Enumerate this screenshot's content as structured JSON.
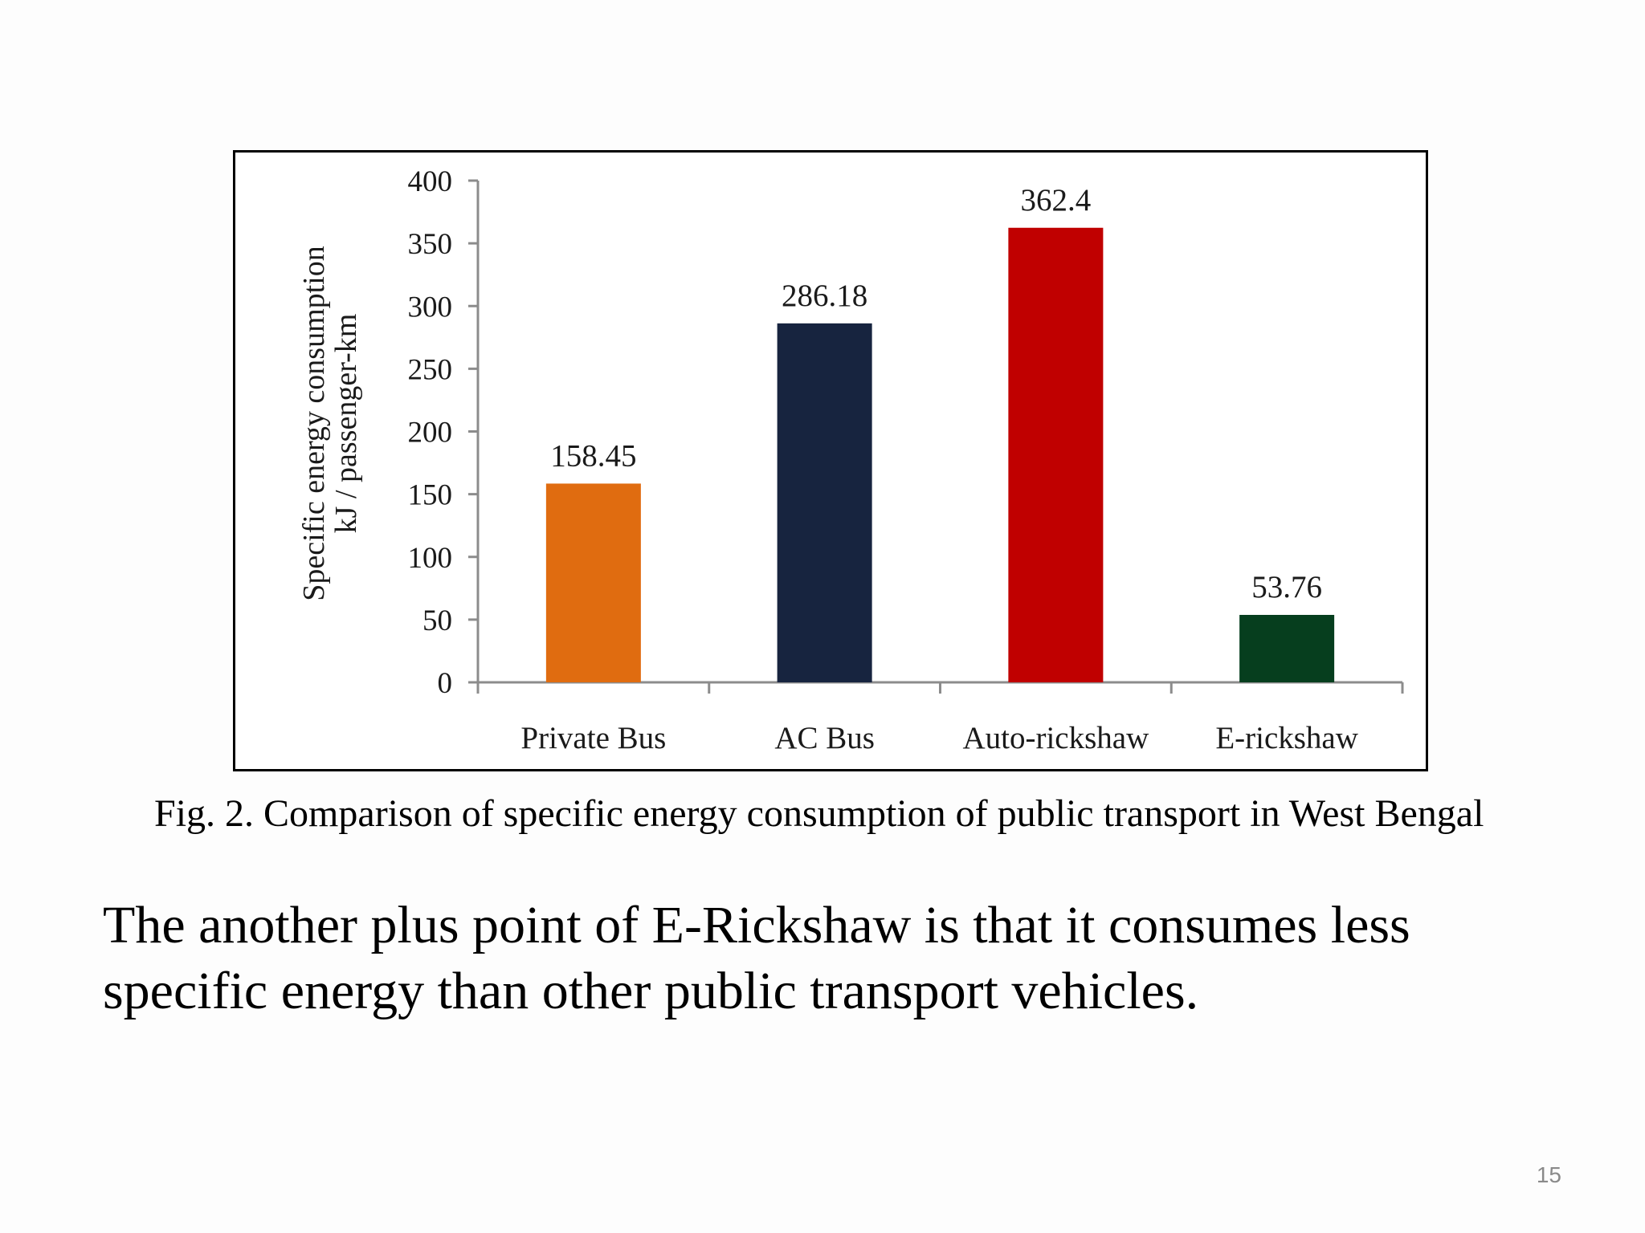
{
  "chart_data": {
    "type": "bar",
    "categories": [
      "Private Bus",
      "AC Bus",
      "Auto-rickshaw",
      "E-rickshaw"
    ],
    "values": [
      158.45,
      286.18,
      362.4,
      53.76
    ],
    "data_labels": [
      "158.45",
      "286.18",
      "362.4",
      "53.76"
    ],
    "colors": [
      "#e06c10",
      "#17243f",
      "#c00000",
      "#063e1e"
    ],
    "ylabel_lines": [
      "Specific energy consumption",
      "kJ / passenger-km"
    ],
    "xlabel": "",
    "ylim": [
      0,
      400
    ],
    "yticks": [
      0,
      50,
      100,
      150,
      200,
      250,
      300,
      350,
      400
    ],
    "grid": false,
    "legend": "none"
  },
  "caption": "Fig. 2. Comparison of specific energy consumption of public transport in West Bengal",
  "body_text": "The another plus point of  E-Rickshaw is that it consumes less specific energy than other public transport vehicles.",
  "slide_number": "15"
}
